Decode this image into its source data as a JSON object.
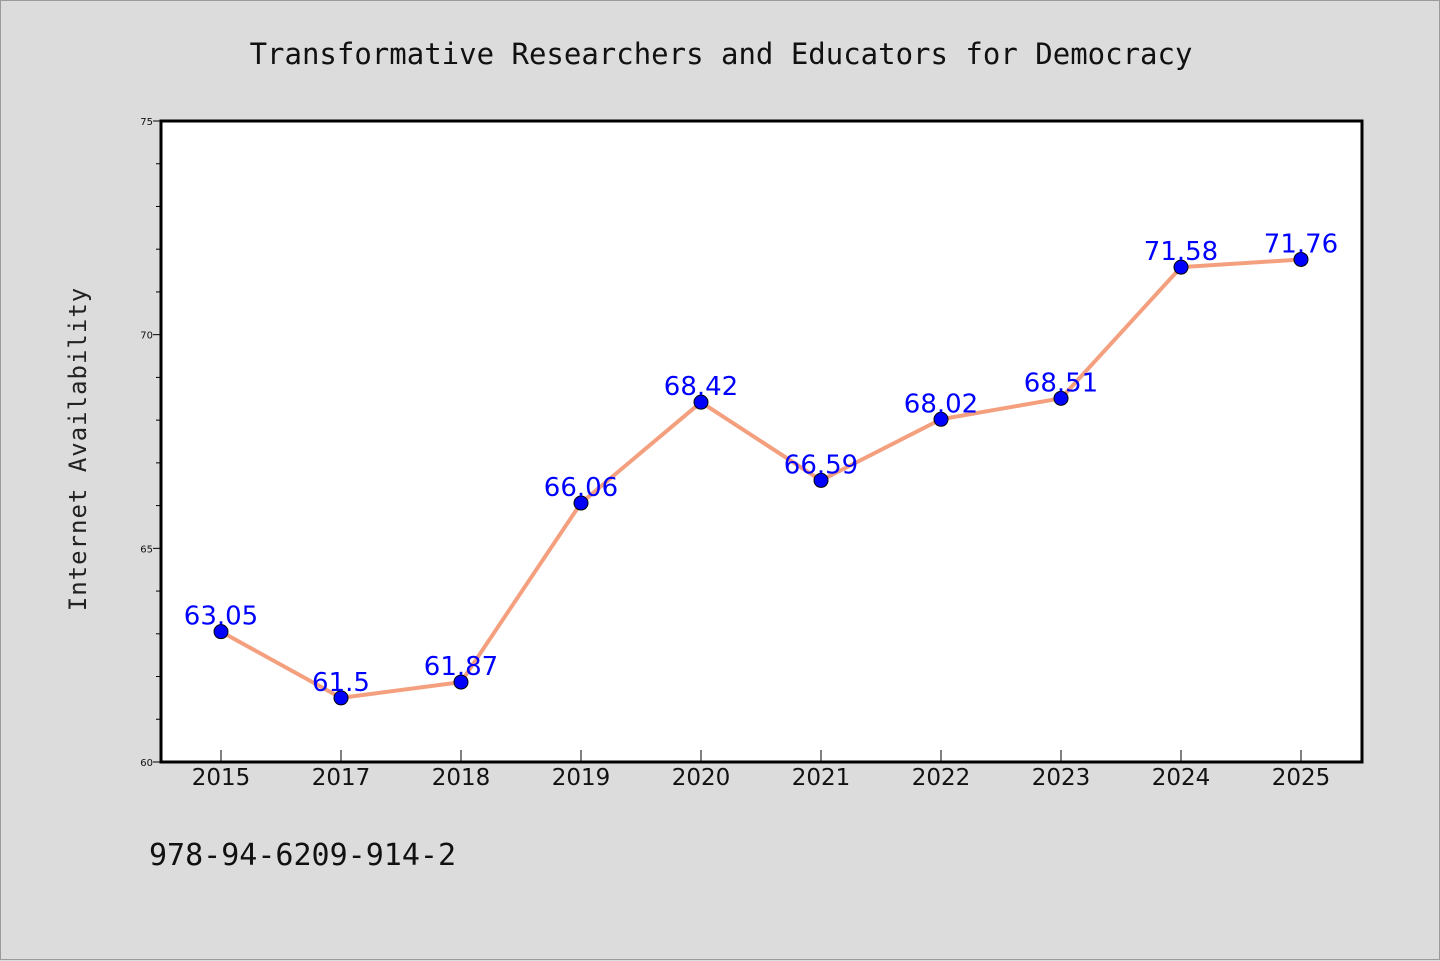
{
  "chart_data": {
    "type": "line",
    "title": "Transformative Researchers and Educators for Democracy",
    "xlabel": "",
    "ylabel": "Internet Availability",
    "categories": [
      "2015",
      "2017",
      "2018",
      "2019",
      "2020",
      "2021",
      "2022",
      "2023",
      "2024",
      "2025"
    ],
    "series": [
      {
        "values": [
          63.05,
          61.5,
          61.87,
          66.06,
          68.42,
          66.59,
          68.02,
          68.51,
          71.58,
          71.76
        ],
        "labels": [
          "63.05",
          "61.5",
          "61.87",
          "66.06",
          "68.42",
          "66.59",
          "68.02",
          "68.51",
          "71.58",
          "71.76"
        ]
      }
    ],
    "ylim": [
      60,
      75
    ],
    "yticks": [
      "60",
      "65",
      "70",
      "75"
    ],
    "grid": false,
    "legend": "none",
    "line_color": "#f4a07f",
    "marker_color": "#0000ff",
    "label_color": "#0000ff",
    "background_color": "#dcdcdc",
    "plot_background": "#ffffff"
  },
  "footer": {
    "isbn": "978-94-6209-914-2"
  }
}
